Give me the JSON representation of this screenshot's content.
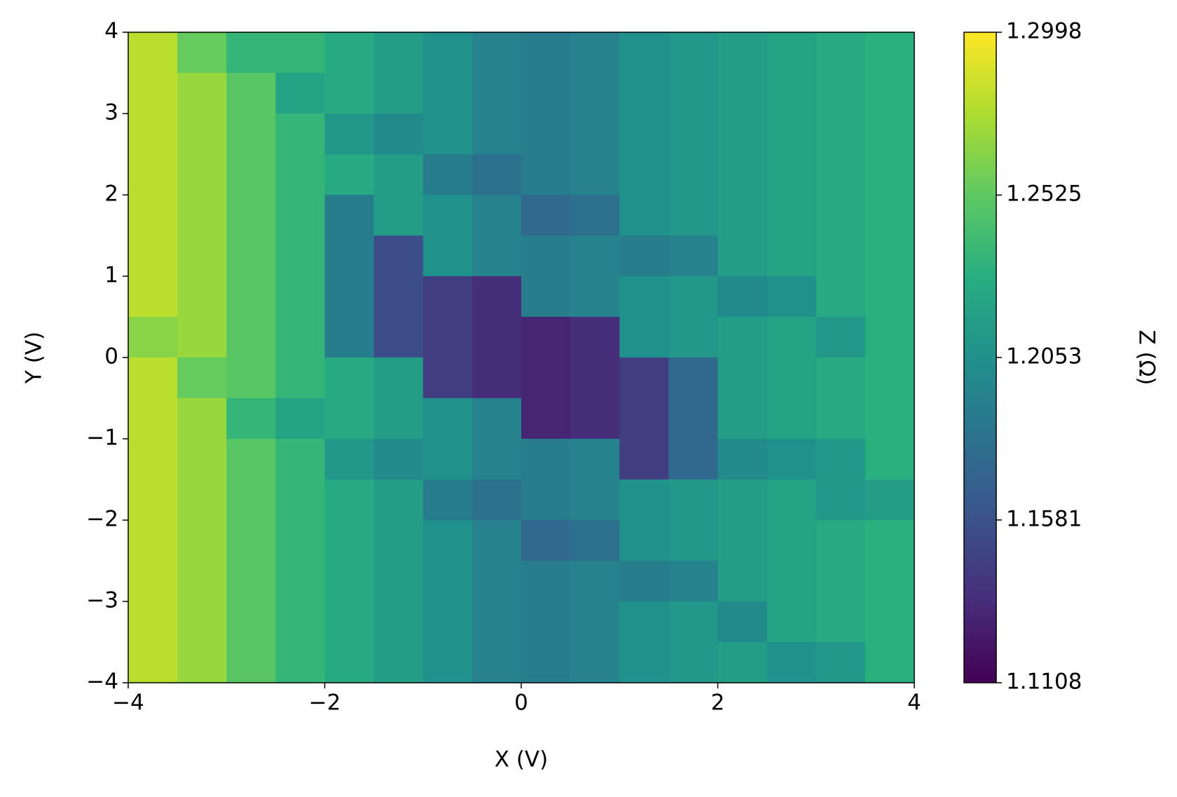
{
  "chart_data": {
    "type": "heatmap",
    "xlabel": "X (V)",
    "ylabel": "Y (V)",
    "colorbar_label": "Z (Ω)",
    "colormap": "viridis",
    "x": [
      -3.75,
      -3.25,
      -2.75,
      -2.25,
      -1.75,
      -1.25,
      -0.75,
      -0.25,
      0.25,
      0.75,
      1.25,
      1.75,
      2.25,
      2.75,
      3.25,
      3.75
    ],
    "y": [
      3.75,
      3.25,
      2.75,
      2.25,
      1.75,
      1.25,
      0.75,
      0.25,
      -0.25,
      -0.75,
      -1.25,
      -1.75,
      -2.25,
      -2.75,
      -3.25,
      -3.75
    ],
    "z": [
      [
        1.28,
        1.255,
        1.235,
        1.235,
        1.225,
        1.215,
        1.205,
        1.195,
        1.19,
        1.195,
        1.205,
        1.21,
        1.215,
        1.22,
        1.225,
        1.23
      ],
      [
        1.28,
        1.27,
        1.25,
        1.22,
        1.225,
        1.215,
        1.205,
        1.195,
        1.19,
        1.195,
        1.205,
        1.21,
        1.215,
        1.22,
        1.225,
        1.23
      ],
      [
        1.28,
        1.27,
        1.25,
        1.235,
        1.21,
        1.2,
        1.205,
        1.195,
        1.19,
        1.195,
        1.205,
        1.21,
        1.215,
        1.22,
        1.225,
        1.23
      ],
      [
        1.28,
        1.27,
        1.25,
        1.235,
        1.225,
        1.215,
        1.19,
        1.18,
        1.19,
        1.195,
        1.205,
        1.21,
        1.215,
        1.22,
        1.225,
        1.23
      ],
      [
        1.28,
        1.27,
        1.25,
        1.235,
        1.19,
        1.215,
        1.205,
        1.195,
        1.175,
        1.18,
        1.205,
        1.21,
        1.215,
        1.22,
        1.225,
        1.23
      ],
      [
        1.28,
        1.27,
        1.25,
        1.235,
        1.19,
        1.155,
        1.205,
        1.195,
        1.19,
        1.195,
        1.19,
        1.195,
        1.215,
        1.22,
        1.225,
        1.23
      ],
      [
        1.28,
        1.27,
        1.25,
        1.235,
        1.19,
        1.155,
        1.145,
        1.135,
        1.19,
        1.195,
        1.205,
        1.21,
        1.2,
        1.205,
        1.225,
        1.23
      ],
      [
        1.265,
        1.27,
        1.25,
        1.235,
        1.19,
        1.155,
        1.145,
        1.135,
        1.13,
        1.135,
        1.205,
        1.21,
        1.215,
        1.22,
        1.21,
        1.23
      ],
      [
        1.28,
        1.255,
        1.25,
        1.235,
        1.225,
        1.215,
        1.145,
        1.135,
        1.13,
        1.135,
        1.145,
        1.175,
        1.215,
        1.22,
        1.225,
        1.23
      ],
      [
        1.28,
        1.27,
        1.235,
        1.22,
        1.225,
        1.215,
        1.205,
        1.195,
        1.13,
        1.135,
        1.145,
        1.175,
        1.215,
        1.22,
        1.225,
        1.23
      ],
      [
        1.28,
        1.27,
        1.25,
        1.235,
        1.21,
        1.2,
        1.205,
        1.195,
        1.19,
        1.195,
        1.145,
        1.175,
        1.2,
        1.205,
        1.21,
        1.23
      ],
      [
        1.28,
        1.27,
        1.25,
        1.235,
        1.225,
        1.215,
        1.19,
        1.18,
        1.19,
        1.195,
        1.205,
        1.21,
        1.215,
        1.22,
        1.21,
        1.215
      ],
      [
        1.28,
        1.27,
        1.25,
        1.235,
        1.225,
        1.215,
        1.205,
        1.195,
        1.175,
        1.18,
        1.205,
        1.21,
        1.215,
        1.22,
        1.225,
        1.23
      ],
      [
        1.28,
        1.27,
        1.25,
        1.235,
        1.225,
        1.215,
        1.205,
        1.195,
        1.19,
        1.195,
        1.19,
        1.195,
        1.215,
        1.22,
        1.225,
        1.23
      ],
      [
        1.28,
        1.27,
        1.25,
        1.235,
        1.225,
        1.215,
        1.205,
        1.195,
        1.19,
        1.195,
        1.205,
        1.21,
        1.2,
        1.22,
        1.225,
        1.23
      ],
      [
        1.28,
        1.27,
        1.25,
        1.235,
        1.225,
        1.215,
        1.205,
        1.195,
        1.19,
        1.195,
        1.205,
        1.21,
        1.215,
        1.205,
        1.21,
        1.23
      ]
    ],
    "xlim": [
      -4,
      4
    ],
    "ylim": [
      -4,
      4
    ],
    "zlim": [
      1.1108,
      1.2998
    ],
    "xticks": [
      {
        "value": -4,
        "label": "−4"
      },
      {
        "value": -2,
        "label": "−2"
      },
      0,
      2,
      4
    ],
    "yticks": [
      {
        "value": -4,
        "label": "−4"
      },
      {
        "value": -3,
        "label": "−3"
      },
      {
        "value": -2,
        "label": "−2"
      },
      {
        "value": -1,
        "label": "−1"
      },
      0,
      1,
      2,
      3,
      4
    ],
    "zticks": [
      1.1108,
      1.1581,
      1.2053,
      1.2525,
      1.2998
    ]
  }
}
